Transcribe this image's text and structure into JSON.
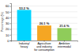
{
  "chart_data": {
    "type": "bar",
    "categories": [
      "Industry/\nheavy",
      "Agriculture\nand industry\nfor consumption",
      "Ambition\nintermodal"
    ],
    "values": [
      53.2,
      26.1,
      21.6
    ],
    "value_labels": [
      "53.2 %",
      "26.1 %",
      "21.6 %"
    ],
    "colors": [
      "#00d4ff",
      "#f5a623",
      "#8fcc5a"
    ],
    "ylabel": "Percentage (%)",
    "ylim": [
      0,
      65
    ],
    "yticks": [
      0,
      10,
      20,
      30,
      40,
      50,
      60
    ],
    "grid": true,
    "data_labels": true
  }
}
